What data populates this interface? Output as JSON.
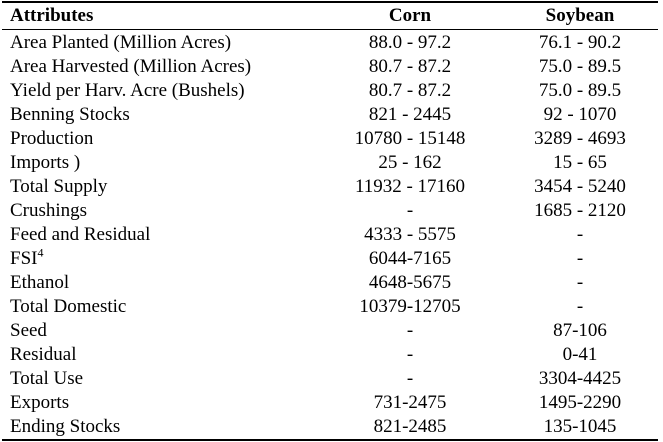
{
  "table": {
    "headers": [
      "Attributes",
      "Corn",
      "Soybean"
    ],
    "rows": [
      {
        "attribute": "Area Planted (Million Acres)",
        "corn": "88.0 - 97.2",
        "soybean": "76.1 - 90.2"
      },
      {
        "attribute": "Area Harvested (Million Acres)",
        "corn": "80.7 - 87.2",
        "soybean": "75.0 - 89.5"
      },
      {
        "attribute": "Yield per Harv. Acre (Bushels)",
        "corn": "80.7 - 87.2",
        "soybean": "75.0 - 89.5"
      },
      {
        "attribute": "Benning Stocks",
        "corn": "821 - 2445",
        "soybean": "92 - 1070"
      },
      {
        "attribute": "Production",
        "corn": "10780 - 15148",
        "soybean": "3289 - 4693"
      },
      {
        "attribute": "Imports )",
        "corn": "25 - 162",
        "soybean": "15 - 65"
      },
      {
        "attribute": "Total Supply",
        "corn": "11932 - 17160",
        "soybean": "3454 - 5240"
      },
      {
        "attribute": "Crushings",
        "corn": "-",
        "soybean": "1685 - 2120"
      },
      {
        "attribute": "Feed and Residual",
        "corn": "4333 - 5575",
        "soybean": "-"
      },
      {
        "attribute": "FSI",
        "footnote": "4",
        "corn": "6044-7165",
        "soybean": "-"
      },
      {
        "attribute": "Ethanol",
        "corn": "4648-5675",
        "soybean": "-"
      },
      {
        "attribute": "Total Domestic",
        "corn": "10379-12705",
        "soybean": "-"
      },
      {
        "attribute": "Seed",
        "corn": "-",
        "soybean": "87-106"
      },
      {
        "attribute": "Residual",
        "corn": "-",
        "soybean": "0-41"
      },
      {
        "attribute": "Total Use",
        "corn": "-",
        "soybean": "3304-4425"
      },
      {
        "attribute": "Exports",
        "corn": "731-2475",
        "soybean": "1495-2290"
      },
      {
        "attribute": "Ending Stocks",
        "corn": "821-2485",
        "soybean": "135-1045"
      }
    ]
  }
}
